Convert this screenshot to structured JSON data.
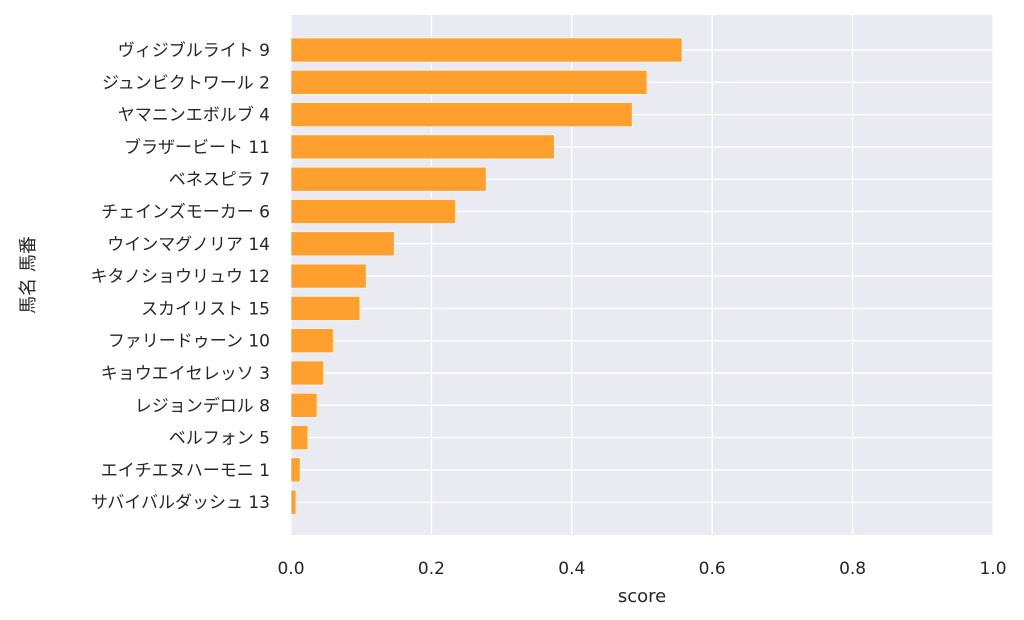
{
  "chart_data": {
    "type": "bar",
    "orientation": "horizontal",
    "title": "",
    "xlabel": "score",
    "ylabel": "馬名 馬番",
    "xlim": [
      0,
      1
    ],
    "x_ticks": [
      "0.0",
      "0.2",
      "0.4",
      "0.6",
      "0.8",
      "1.0"
    ],
    "x_tick_values": [
      0,
      0.2,
      0.4,
      0.6,
      0.8,
      1.0
    ],
    "grid": true,
    "bar_color": "#ff9f2e",
    "background_color": "#eaeaf2",
    "categories": [
      "ヴィジブルライト 9",
      "ジュンビクトワール 2",
      "ヤマニンエボルブ 4",
      "ブラザービート 11",
      "ベネスピラ 7",
      "チェインズモーカー 6",
      "ウインマグノリア 14",
      "キタノショウリュウ 12",
      "スカイリスト 15",
      "ファリードゥーン 10",
      "キョウエイセレッソ 3",
      "レジョンデロル 8",
      "ベルフォン 5",
      "エイチエヌハーモニ 1",
      "サバイバルダッシュ 13"
    ],
    "values": [
      0.557,
      0.507,
      0.486,
      0.375,
      0.278,
      0.234,
      0.147,
      0.107,
      0.098,
      0.06,
      0.046,
      0.037,
      0.024,
      0.013,
      0.007
    ]
  }
}
